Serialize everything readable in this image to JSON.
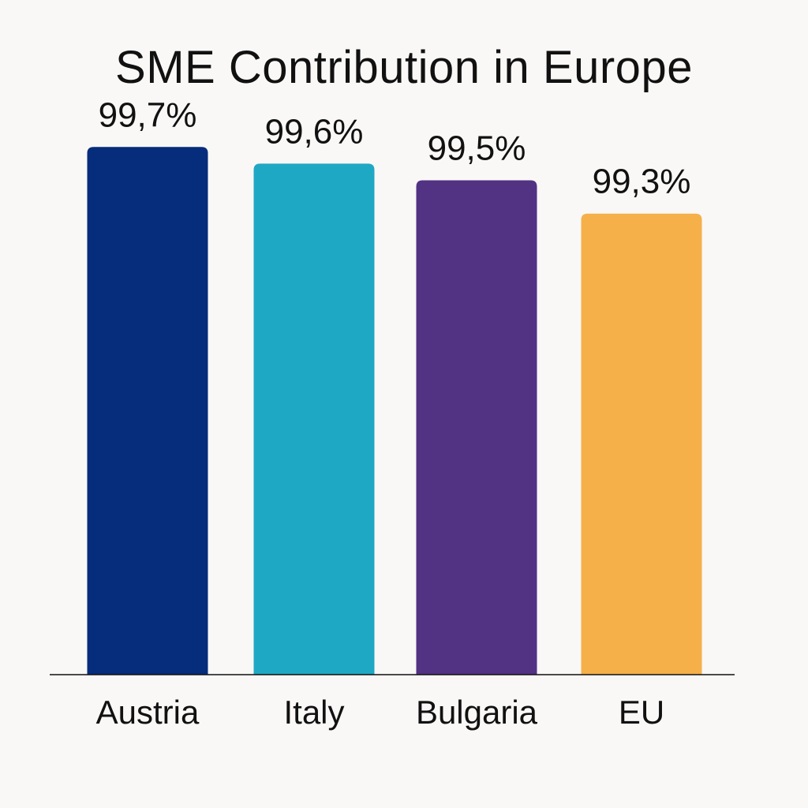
{
  "chart_data": {
    "type": "bar",
    "title": "SME Contribution in Europe",
    "categories": [
      "Austria",
      "Italy",
      "Bulgaria",
      "EU"
    ],
    "values": [
      99.7,
      99.6,
      99.5,
      99.3
    ],
    "value_labels": [
      "99,7%",
      "99,6%",
      "99,5%",
      "99,3%"
    ],
    "colors": [
      "#062c7c",
      "#1fa8c3",
      "#523283",
      "#f5b04a"
    ],
    "xlabel": "",
    "ylabel": "",
    "grid": false,
    "legend": "none"
  }
}
